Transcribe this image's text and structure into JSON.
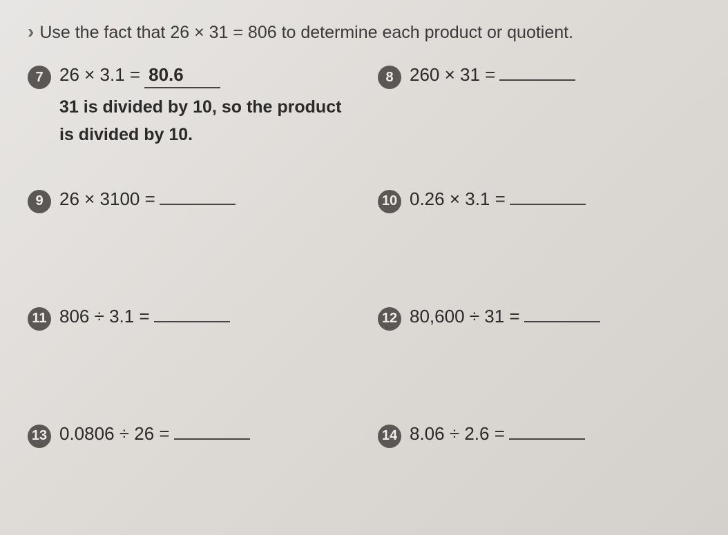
{
  "instruction": "Use the fact that 26 × 31 = 806 to determine each product or quotient.",
  "problems": {
    "p7": {
      "num": "7",
      "expr": "26 × 3.1 =",
      "answer": "80.6",
      "explain1": "31 is divided by 10, so the product",
      "explain2": "is divided by 10."
    },
    "p8": {
      "num": "8",
      "expr": "260 × 31 =",
      "answer": ""
    },
    "p9": {
      "num": "9",
      "expr": "26 × 3100 =",
      "answer": ""
    },
    "p10": {
      "num": "10",
      "expr": "0.26 × 3.1 =",
      "answer": ""
    },
    "p11": {
      "num": "11",
      "expr": "806 ÷ 3.1 =",
      "answer": ""
    },
    "p12": {
      "num": "12",
      "expr": "80,600 ÷ 31 =",
      "answer": ""
    },
    "p13": {
      "num": "13",
      "expr": "0.0806 ÷ 26 =",
      "answer": ""
    },
    "p14": {
      "num": "14",
      "expr": "8.06 ÷ 2.6 =",
      "answer": ""
    }
  },
  "style": {
    "badge_bg": "#5a5754",
    "badge_fg": "#efedeb",
    "page_bg": "#ddd9d5",
    "text_color": "#2a2a2a",
    "underline_color": "#444444",
    "instruction_fontsize": 25,
    "equation_fontsize": 26,
    "badge_diameter": 34
  }
}
